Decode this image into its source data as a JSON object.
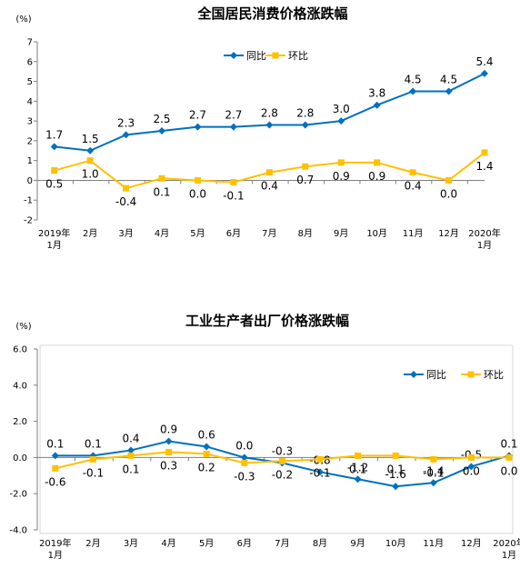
{
  "chart_data": [
    {
      "type": "line",
      "title": "全国居民消费价格涨跌幅",
      "unit_label": "(%)",
      "ylim": [
        -2,
        7
      ],
      "yticks": [
        7,
        6,
        5,
        4,
        3,
        2,
        1,
        0,
        -1,
        -2
      ],
      "grid": false,
      "legend_position": "top-right",
      "categories": [
        [
          "2019年",
          "1月"
        ],
        [
          "2月"
        ],
        [
          "3月"
        ],
        [
          "4月"
        ],
        [
          "5月"
        ],
        [
          "6月"
        ],
        [
          "7月"
        ],
        [
          "8月"
        ],
        [
          "9月"
        ],
        [
          "10月"
        ],
        [
          "11月"
        ],
        [
          "12月"
        ],
        [
          "2020年",
          "1月"
        ]
      ],
      "series": [
        {
          "name": "同比",
          "color": "#0070C0",
          "marker": "diamond",
          "label_position": "above",
          "values": [
            1.7,
            1.5,
            2.3,
            2.5,
            2.7,
            2.7,
            2.8,
            2.8,
            3.0,
            3.8,
            4.5,
            4.5,
            5.4
          ],
          "labels": [
            "1.7",
            "1.5",
            "2.3",
            "2.5",
            "2.7",
            "2.7",
            "2.8",
            "2.8",
            "3.0",
            "3.8",
            "4.5",
            "4.5",
            "5.4"
          ]
        },
        {
          "name": "环比",
          "color": "#FFC000",
          "marker": "square",
          "label_position": "below",
          "values": [
            0.5,
            1.0,
            -0.4,
            0.1,
            0.0,
            -0.1,
            0.4,
            0.7,
            0.9,
            0.9,
            0.4,
            0.0,
            1.4
          ],
          "labels": [
            "0.5",
            "1.0",
            "-0.4",
            "0.1",
            "0.0",
            "-0.1",
            "0.4",
            "0.7",
            "0.9",
            "0.9",
            "0.4",
            "0.0",
            "1.4"
          ]
        }
      ]
    },
    {
      "type": "line",
      "title": "工业生产者出厂价格涨跌幅",
      "unit_label": "(%)",
      "ylim": [
        -4,
        6
      ],
      "yticks": [
        "6.0",
        "4.0",
        "2.0",
        "0.0",
        "-2.0",
        "-4.0"
      ],
      "grid": false,
      "legend_position": "top-right",
      "categories": [
        [
          "2019年",
          "1月"
        ],
        [
          "2月"
        ],
        [
          "3月"
        ],
        [
          "4月"
        ],
        [
          "5月"
        ],
        [
          "6月"
        ],
        [
          "7月"
        ],
        [
          "8月"
        ],
        [
          "9月"
        ],
        [
          "10月"
        ],
        [
          "11月"
        ],
        [
          "12月"
        ],
        [
          "2020年",
          "1月"
        ]
      ],
      "series": [
        {
          "name": "同比",
          "color": "#0070C0",
          "marker": "diamond",
          "label_position": "above",
          "values": [
            0.1,
            0.1,
            0.4,
            0.9,
            0.6,
            0.0,
            -0.3,
            -0.8,
            -1.2,
            -1.6,
            -1.4,
            -0.5,
            0.1
          ],
          "labels": [
            "0.1",
            "0.1",
            "0.4",
            "0.9",
            "0.6",
            "0.0",
            "-0.3",
            "-0.8",
            "-1.2",
            "-1.6",
            "-1.4",
            "-0.5",
            "0.1"
          ]
        },
        {
          "name": "环比",
          "color": "#FFC000",
          "marker": "square",
          "label_position": "below",
          "values": [
            -0.6,
            -0.1,
            0.1,
            0.3,
            0.2,
            -0.3,
            -0.2,
            -0.1,
            0.1,
            0.1,
            -0.1,
            0.0,
            0.0
          ],
          "labels": [
            "-0.6",
            "-0.1",
            "0.1",
            "0.3",
            "0.2",
            "-0.3",
            "-0.2",
            "-0.1",
            "0.1",
            "0.1",
            "-0.1",
            "0.0",
            "0.0"
          ]
        }
      ]
    }
  ]
}
